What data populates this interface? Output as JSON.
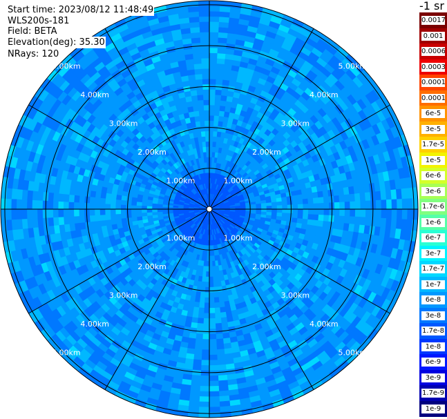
{
  "info": {
    "start_time": "Start time: 2023/08/12 11:48:49",
    "instrument": "WLS200s-181",
    "field": "Field: BETA",
    "elevation": "Elevation(deg): 35.30",
    "nrays": "NRays: 120"
  },
  "legend": {
    "unit": "-1 sr",
    "labels": [
      "0.0017",
      "0.001",
      "0.0006",
      "0.0003",
      "0.00017",
      "0.0001",
      "6e-5",
      "3e-5",
      "1.7e-5",
      "1e-5",
      "6e-6",
      "3e-6",
      "1.7e-6",
      "1e-6",
      "6e-7",
      "3e-7",
      "1.7e-7",
      "1e-7",
      "6e-8",
      "3e-8",
      "1.7e-8",
      "1e-8",
      "6e-9",
      "3e-9",
      "1.7e-9",
      "1e-9"
    ],
    "colors": [
      "#7a0000",
      "#a00000",
      "#c80000",
      "#ee0000",
      "#ff4400",
      "#ff6d00",
      "#ff9200",
      "#ffb000",
      "#ffd000",
      "#f3f300",
      "#d4ff2a",
      "#a8ff55",
      "#80ff80",
      "#55ffa8",
      "#2affd4",
      "#00f4ff",
      "#00d8ff",
      "#00b8ff",
      "#0098ff",
      "#0078ff",
      "#0058ff",
      "#0038ff",
      "#0018ff",
      "#0000e0",
      "#0000b0",
      "#000080"
    ]
  },
  "chart_data": {
    "type": "heatmap",
    "projection": "polar-ppi",
    "rays": 120,
    "range_rings_km": [
      1,
      2,
      3,
      4,
      5
    ],
    "max_range_km": 5.1,
    "ring_labels": [
      "1.00km",
      "2.00km",
      "3.00km",
      "4.00km",
      "5.00km"
    ],
    "radial_lines_deg": [
      0,
      30,
      60,
      90,
      120,
      150,
      180,
      210,
      240,
      270,
      300,
      330
    ],
    "dominant_value_range": [
      "3e-8",
      "1.7e-7"
    ],
    "near_field_value": "3e-8"
  }
}
